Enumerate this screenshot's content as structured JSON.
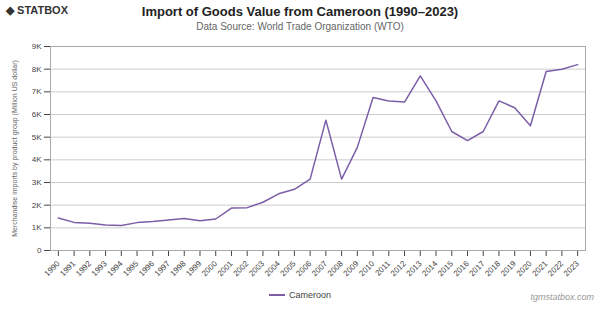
{
  "chart_data": {
    "type": "line",
    "title": "Import of Goods Value from Cameroon (1990–2023)",
    "subtitle": "Data Source: World Trade Organization (WTO)",
    "ylabel": "Merchandise imports by product group (Million US dollar)",
    "annotations": [
      "◆ STATBOX",
      "tgmstatbox.com"
    ],
    "x": [
      1990,
      1991,
      1992,
      1993,
      1994,
      1995,
      1996,
      1997,
      1998,
      1999,
      2000,
      2001,
      2002,
      2003,
      2004,
      2005,
      2006,
      2007,
      2008,
      2009,
      2010,
      2011,
      2012,
      2013,
      2014,
      2015,
      2016,
      2017,
      2018,
      2019,
      2020,
      2021,
      2022,
      2023
    ],
    "series": [
      {
        "name": "Cameroon",
        "color": "#7B5EA7",
        "values": [
          1430,
          1240,
          1200,
          1130,
          1100,
          1230,
          1280,
          1350,
          1410,
          1310,
          1390,
          1870,
          1890,
          2130,
          2500,
          2700,
          3150,
          5750,
          3150,
          4550,
          6750,
          6600,
          6550,
          7700,
          6600,
          5250,
          4850,
          5250,
          6600,
          6300,
          5500,
          7900,
          8000,
          8200
        ]
      }
    ],
    "xlim": [
      1989.5,
      2023.5
    ],
    "xticks": [
      1990,
      1991,
      1992,
      1993,
      1994,
      1995,
      1996,
      1997,
      1998,
      1999,
      2000,
      2001,
      2002,
      2003,
      2004,
      2005,
      2006,
      2007,
      2008,
      2009,
      2010,
      2011,
      2012,
      2013,
      2014,
      2015,
      2016,
      2017,
      2018,
      2019,
      2020,
      2021,
      2022,
      2023
    ],
    "ylim": [
      0,
      9000
    ],
    "yticks": [
      0,
      {
        "value": 1000,
        "label": "1K"
      },
      {
        "value": 2000,
        "label": "2K"
      },
      {
        "value": 3000,
        "label": "3K"
      },
      {
        "value": 4000,
        "label": "4K"
      },
      {
        "value": 5000,
        "label": "5K"
      },
      {
        "value": 6000,
        "label": "6K"
      },
      {
        "value": 7000,
        "label": "7K"
      },
      {
        "value": 8000,
        "label": "8K"
      },
      {
        "value": 9000,
        "label": "9K"
      }
    ],
    "grid": "y",
    "legend": "bottom"
  }
}
